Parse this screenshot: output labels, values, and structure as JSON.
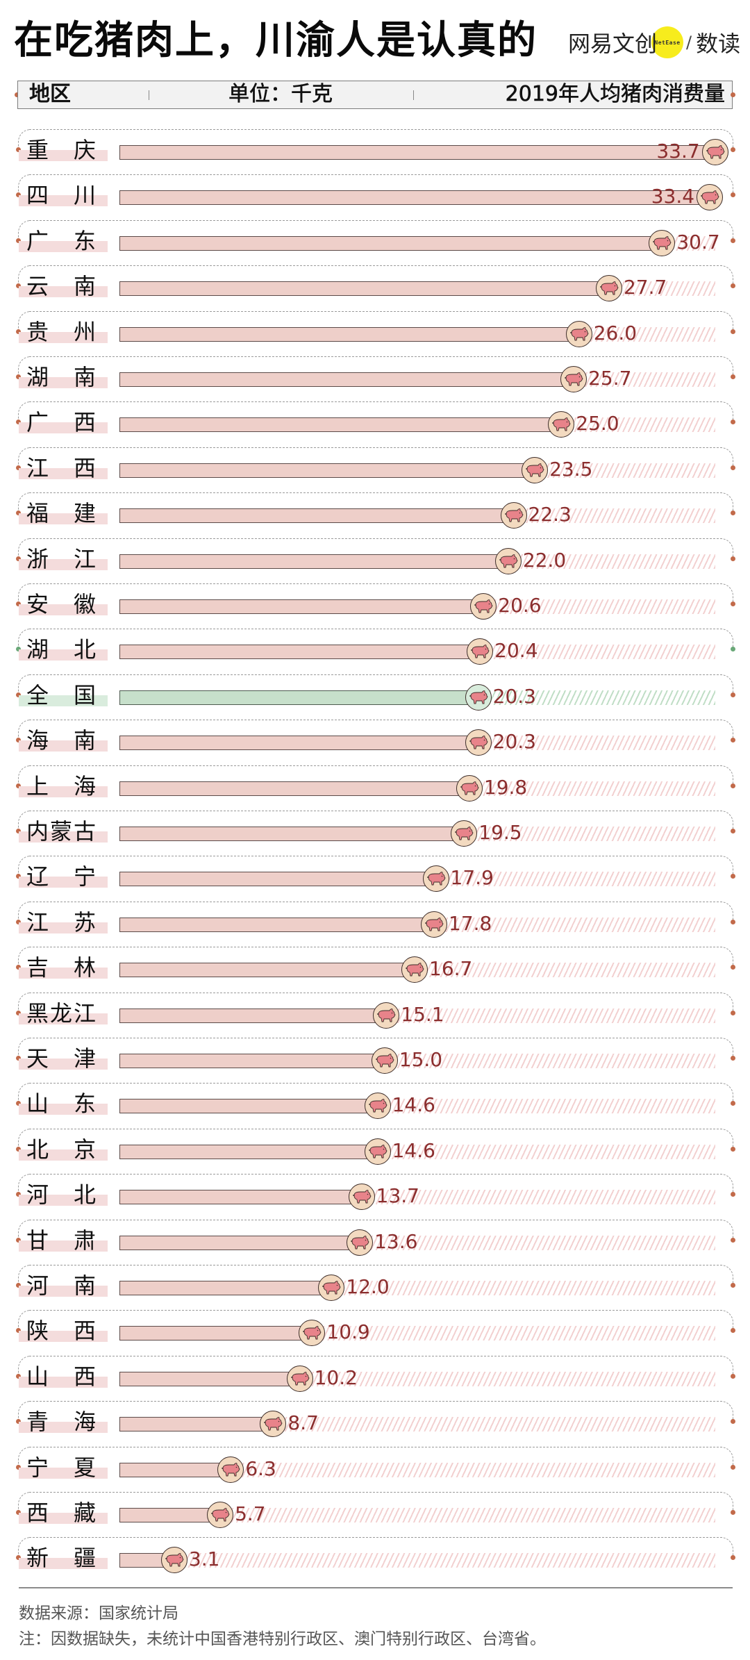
{
  "title": "在吃猪肉上，川渝人是认真的",
  "logo": {
    "brand": "网易文创",
    "badge": "NetEase",
    "slash": "/",
    "sub": "数读"
  },
  "header": {
    "region": "地区",
    "unit": "单位：千克",
    "metric": "2019年人均猪肉消费量"
  },
  "colors": {
    "bar": "#eecfc9",
    "bar_national": "#c7e0cb",
    "value_text": "#8b2e2e",
    "pig_circle": "#f3dac0",
    "pig_circle_national": "#d8ecdc",
    "pig_body": "#e8838a",
    "dot": "#c26a4a",
    "dot_green": "#6aa878"
  },
  "chart_data": {
    "type": "bar",
    "orientation": "horizontal",
    "title": "在吃猪肉上，川渝人是认真的",
    "xlabel": "2019年人均猪肉消费量",
    "ylabel": "地区",
    "unit": "千克",
    "categories": [
      "重庆",
      "四川",
      "广东",
      "云南",
      "贵州",
      "湖南",
      "广西",
      "江西",
      "福建",
      "浙江",
      "安徽",
      "湖北",
      "全国",
      "海南",
      "上海",
      "内蒙古",
      "辽宁",
      "江苏",
      "吉林",
      "黑龙江",
      "天津",
      "山东",
      "北京",
      "河北",
      "甘肃",
      "河南",
      "陕西",
      "山西",
      "青海",
      "宁夏",
      "西藏",
      "新疆"
    ],
    "values": [
      33.7,
      33.4,
      30.7,
      27.7,
      26.0,
      25.7,
      25.0,
      23.5,
      22.3,
      22.0,
      20.6,
      20.4,
      20.3,
      20.3,
      19.8,
      19.5,
      17.9,
      17.8,
      16.7,
      15.1,
      15.0,
      14.6,
      14.6,
      13.7,
      13.6,
      12.0,
      10.9,
      10.2,
      8.7,
      6.3,
      5.7,
      3.1
    ],
    "value_labels": [
      "33.7",
      "33.4",
      "30.7",
      "27.7",
      "26.0",
      "25.7",
      "25.0",
      "23.5",
      "22.3",
      "22.0",
      "20.6",
      "20.4",
      "20.3",
      "20.3",
      "19.8",
      "19.5",
      "17.9",
      "17.8",
      "16.7",
      "15.1",
      "15.0",
      "14.6",
      "14.6",
      "13.7",
      "13.6",
      "12.0",
      "10.9",
      "10.2",
      "8.7",
      "6.3",
      "5.7",
      "3.1"
    ],
    "highlight": "全国",
    "xlim": [
      0,
      34
    ],
    "grid": false,
    "legend": null
  },
  "footer": {
    "source": "数据来源：国家统计局",
    "note": "注：因数据缺失，未统计中国香港特别行政区、澳门特别行政区、台湾省。"
  }
}
